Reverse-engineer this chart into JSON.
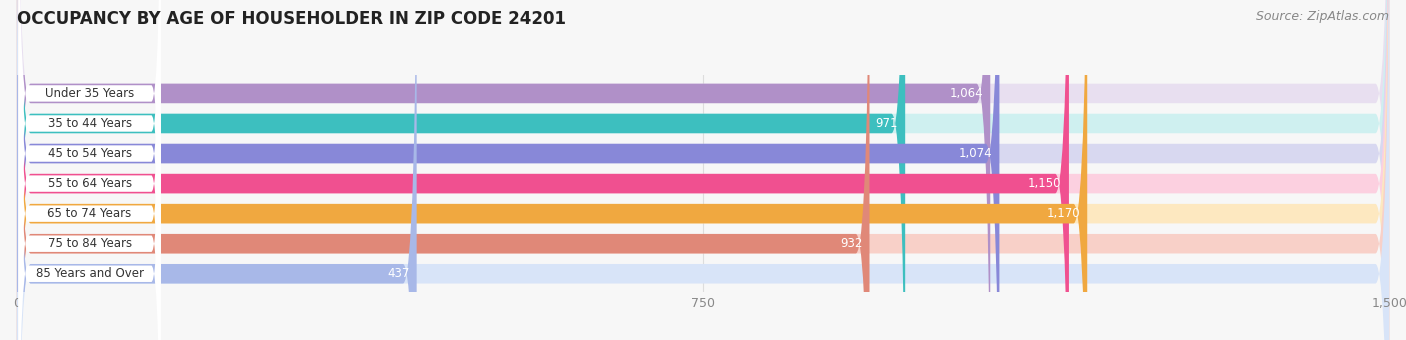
{
  "title": "OCCUPANCY BY AGE OF HOUSEHOLDER IN ZIP CODE 24201",
  "source": "Source: ZipAtlas.com",
  "categories": [
    "Under 35 Years",
    "35 to 44 Years",
    "45 to 54 Years",
    "55 to 64 Years",
    "65 to 74 Years",
    "75 to 84 Years",
    "85 Years and Over"
  ],
  "values": [
    1064,
    971,
    1074,
    1150,
    1170,
    932,
    437
  ],
  "bar_colors": [
    "#b090c8",
    "#3dbfbf",
    "#8888d8",
    "#f05090",
    "#f0a840",
    "#e08878",
    "#a8b8e8"
  ],
  "bar_bg_colors": [
    "#e8dff0",
    "#cff0f0",
    "#d8d8f0",
    "#fcd0e0",
    "#fde8c0",
    "#f8d0c8",
    "#d8e4f8"
  ],
  "xlim": [
    0,
    1500
  ],
  "xticks": [
    0,
    750,
    1500
  ],
  "title_fontsize": 12,
  "source_fontsize": 9,
  "bar_height": 0.65,
  "background_color": "#f7f7f7",
  "label_bg_color": "#ffffff",
  "label_text_color": "#333333",
  "value_text_color": "#ffffff",
  "grid_color": "#dddddd",
  "tick_color": "#888888"
}
